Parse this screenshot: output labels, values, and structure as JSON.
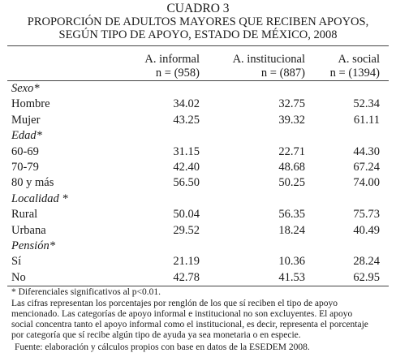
{
  "caption": "CUADRO 3",
  "title_line1": "PROPORCIÓN DE ADULTOS MAYORES QUE RECIBEN APOYOS,",
  "title_line2": "SEGÚN TIPO DE APOYO, ESTADO DE MÉXICO, 2008",
  "columns": [
    {
      "name": "A. informal",
      "n": "n = (958)"
    },
    {
      "name": "A. institucional",
      "n": "n = (887)"
    },
    {
      "name": "A. social",
      "n": "n = (1394)"
    }
  ],
  "sections": [
    {
      "title": "Sexo*",
      "rows": [
        {
          "label": "Hombre",
          "values": [
            "34.02",
            "32.75",
            "52.34"
          ]
        },
        {
          "label": "Mujer",
          "values": [
            "43.25",
            "39.32",
            "61.11"
          ]
        }
      ]
    },
    {
      "title": "Edad*",
      "rows": [
        {
          "label": "60-69",
          "values": [
            "31.15",
            "22.71",
            "44.30"
          ]
        },
        {
          "label": "70-79",
          "values": [
            "42.40",
            "48.68",
            "67.24"
          ]
        },
        {
          "label": "80 y más",
          "values": [
            "56.50",
            "50.25",
            "74.00"
          ]
        }
      ]
    },
    {
      "title": "Localidad *",
      "rows": [
        {
          "label": "Rural",
          "values": [
            "50.04",
            "56.35",
            "75.73"
          ]
        },
        {
          "label": "Urbana",
          "values": [
            "29.52",
            "18.24",
            "40.49"
          ]
        }
      ]
    },
    {
      "title": "Pensión*",
      "rows": [
        {
          "label": "Sí",
          "values": [
            "21.19",
            "10.36",
            "28.24"
          ]
        },
        {
          "label": "No",
          "values": [
            "42.78",
            "41.53",
            "62.95"
          ]
        }
      ]
    }
  ],
  "notes": {
    "significance": "* Diferenciales significativos al p<0.01.",
    "explanation_line1": "Las cifras representan los porcentajes por renglón de los que sí reciben el tipo de apoyo",
    "explanation_line2": "mencionado. Las categorías de apoyo informal e institucional no son excluyentes. El apoyo",
    "explanation_line3": "social concentra tanto el apoyo informal como el institucional, es decir, representa el porcentaje",
    "explanation_line4": "por categoría que sí recibe algún tipo de ayuda ya sea monetaria o en especie.",
    "source": "Fuente: elaboración y cálculos propios con base en datos de la ESEDEM 2008."
  }
}
